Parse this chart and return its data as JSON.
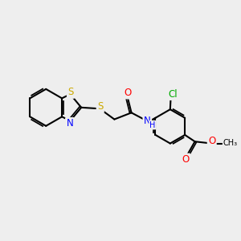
{
  "bg_color": "#eeeeee",
  "bond_color": "#000000",
  "bond_width": 1.5,
  "atom_colors": {
    "S": "#ccaa00",
    "N": "#0000ff",
    "O": "#ff0000",
    "Cl": "#00aa00",
    "C": "#000000"
  },
  "font_size": 8.5,
  "font_size_small": 7.0
}
